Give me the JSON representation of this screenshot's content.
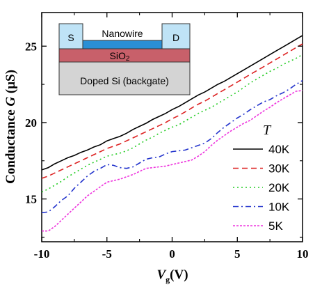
{
  "chart_data": {
    "type": "line",
    "xlabel_main": "V",
    "xlabel_sub": "g",
    "xlabel_unit": "(V)",
    "ylabel_main": "Conductance ",
    "ylabel_sym": "G",
    "ylabel_unit": " (μS)",
    "xlim": [
      -10,
      10
    ],
    "ylim": [
      12.2,
      27.2
    ],
    "x_ticks": [
      -10,
      -5,
      0,
      5,
      10
    ],
    "y_ticks": [
      15,
      20,
      25
    ],
    "legend_title": "T",
    "legend_position": "bottom-right",
    "x": [
      -10,
      -9.5,
      -9,
      -8.5,
      -8,
      -7.5,
      -7,
      -6.5,
      -6,
      -5.5,
      -5,
      -4.5,
      -4,
      -3.5,
      -3,
      -2.5,
      -2,
      -1.5,
      -1,
      -0.5,
      0,
      0.5,
      1,
      1.5,
      2,
      2.5,
      3,
      3.5,
      4,
      4.5,
      5,
      5.5,
      6,
      6.5,
      7,
      7.5,
      8,
      8.5,
      9,
      9.5,
      10
    ],
    "series": [
      {
        "name": "40K",
        "color": "#000000",
        "dash": "solid",
        "values": [
          16.9,
          17.05,
          17.3,
          17.5,
          17.7,
          17.85,
          18.05,
          18.2,
          18.4,
          18.55,
          18.8,
          18.95,
          19.1,
          19.3,
          19.55,
          19.75,
          19.95,
          20.2,
          20.4,
          20.6,
          20.85,
          21.05,
          21.3,
          21.55,
          21.8,
          22.0,
          22.25,
          22.5,
          22.7,
          22.95,
          23.2,
          23.45,
          23.7,
          23.95,
          24.2,
          24.45,
          24.7,
          24.95,
          25.2,
          25.45,
          25.7
        ]
      },
      {
        "name": "30K",
        "color": "#dd2222",
        "dash": "8,5",
        "values": [
          16.35,
          16.5,
          16.7,
          16.9,
          17.1,
          17.3,
          17.5,
          17.7,
          17.9,
          18.1,
          18.3,
          18.45,
          18.6,
          18.8,
          19.0,
          19.2,
          19.4,
          19.6,
          19.8,
          20.0,
          20.25,
          20.45,
          20.7,
          20.95,
          21.2,
          21.4,
          21.65,
          21.9,
          22.15,
          22.4,
          22.65,
          22.9,
          23.15,
          23.4,
          23.65,
          23.9,
          24.15,
          24.4,
          24.65,
          24.9,
          25.15
        ]
      },
      {
        "name": "20K",
        "color": "#22cc22",
        "dash": "2,4",
        "values": [
          15.45,
          15.65,
          15.9,
          16.15,
          16.45,
          16.7,
          16.95,
          17.2,
          17.4,
          17.6,
          17.8,
          17.9,
          18.0,
          18.15,
          18.35,
          18.6,
          18.85,
          19.05,
          19.3,
          19.5,
          19.7,
          19.85,
          20.1,
          20.35,
          20.6,
          20.8,
          21.0,
          21.25,
          21.5,
          21.75,
          22.0,
          22.3,
          22.6,
          22.85,
          23.1,
          23.35,
          23.55,
          23.8,
          24.0,
          24.2,
          24.45
        ]
      },
      {
        "name": "10K",
        "color": "#2233cc",
        "dash": "8,4,2,4",
        "values": [
          14.1,
          14.15,
          14.5,
          14.9,
          15.2,
          15.7,
          16.1,
          16.5,
          16.8,
          17.0,
          17.25,
          17.2,
          17.05,
          17.0,
          17.1,
          17.35,
          17.6,
          17.7,
          17.75,
          17.95,
          18.1,
          18.15,
          18.2,
          18.35,
          18.5,
          18.65,
          18.95,
          19.35,
          19.7,
          20.0,
          20.3,
          20.55,
          20.85,
          21.1,
          21.35,
          21.5,
          21.75,
          21.95,
          22.2,
          22.5,
          22.75
        ]
      },
      {
        "name": "5K",
        "color": "#ee33dd",
        "dash": "3,2",
        "values": [
          12.9,
          12.9,
          13.2,
          13.6,
          14.0,
          14.4,
          14.8,
          15.2,
          15.5,
          15.8,
          16.1,
          16.2,
          16.3,
          16.45,
          16.6,
          16.8,
          17.0,
          17.05,
          17.1,
          17.15,
          17.25,
          17.35,
          17.45,
          17.55,
          17.8,
          18.1,
          18.5,
          18.85,
          19.15,
          19.45,
          19.7,
          19.95,
          20.15,
          20.45,
          20.75,
          21.0,
          21.3,
          21.55,
          21.8,
          22.05,
          22.1
        ]
      }
    ],
    "inset": {
      "source": "S",
      "drain": "D",
      "nanowire": "Nanowire",
      "oxide_main": "SiO",
      "oxide_sub": "2",
      "substrate": "Doped Si (backgate)",
      "color_contact": "#bfe3f6",
      "color_nanowire": "#2a8fd6",
      "color_oxide": "#c8606a",
      "color_substrate": "#d4d4d4"
    }
  }
}
